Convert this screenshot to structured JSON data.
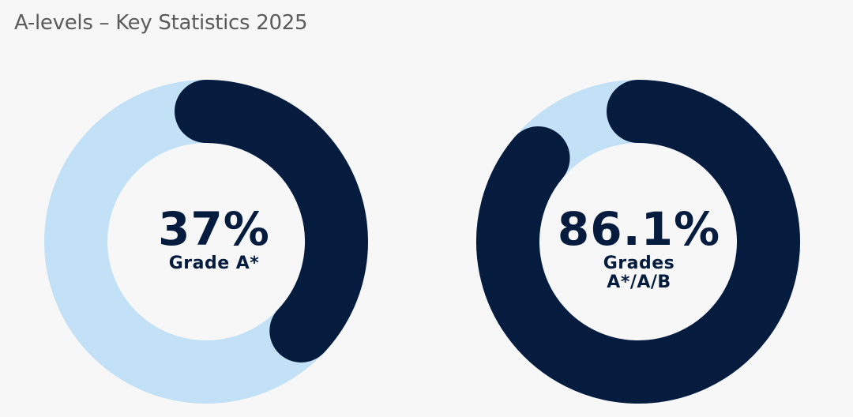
{
  "title": "A-levels – Key Statistics 2025",
  "colors": {
    "track": "#c2e0f6",
    "value": "#061c3f",
    "background": "#f7f7f7",
    "title": "#5b5b5b"
  },
  "chart_data": [
    {
      "type": "pie",
      "variant": "donut",
      "value_percent": 37,
      "value_text": "37%",
      "label": "Grade A*"
    },
    {
      "type": "pie",
      "variant": "donut",
      "value_percent": 86.1,
      "value_text": "86.1%",
      "label": "Grades A*/A/B"
    }
  ]
}
